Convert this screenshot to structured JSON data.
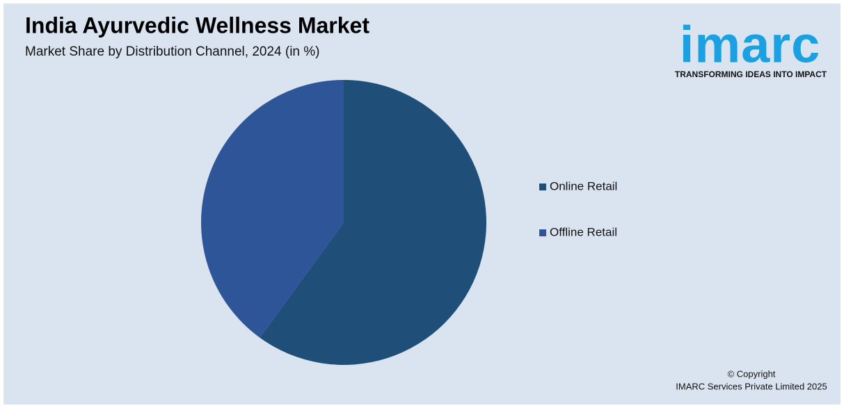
{
  "chart_data": {
    "type": "pie",
    "title": "India Ayurvedic Wellness Market",
    "subtitle": "Market Share by Distribution Channel, 2024 (in %)",
    "categories": [
      "Online Retail",
      "Offline Retail"
    ],
    "values": [
      60,
      40
    ],
    "colors": [
      "#1f4e79",
      "#2e5597"
    ],
    "legend": "right"
  },
  "logo": {
    "name": "imarc",
    "tagline": "TRANSFORMING IDEAS INTO IMPACT"
  },
  "footer": {
    "copyright": "© Copyright",
    "owner": "IMARC Services Private Limited 2025"
  }
}
